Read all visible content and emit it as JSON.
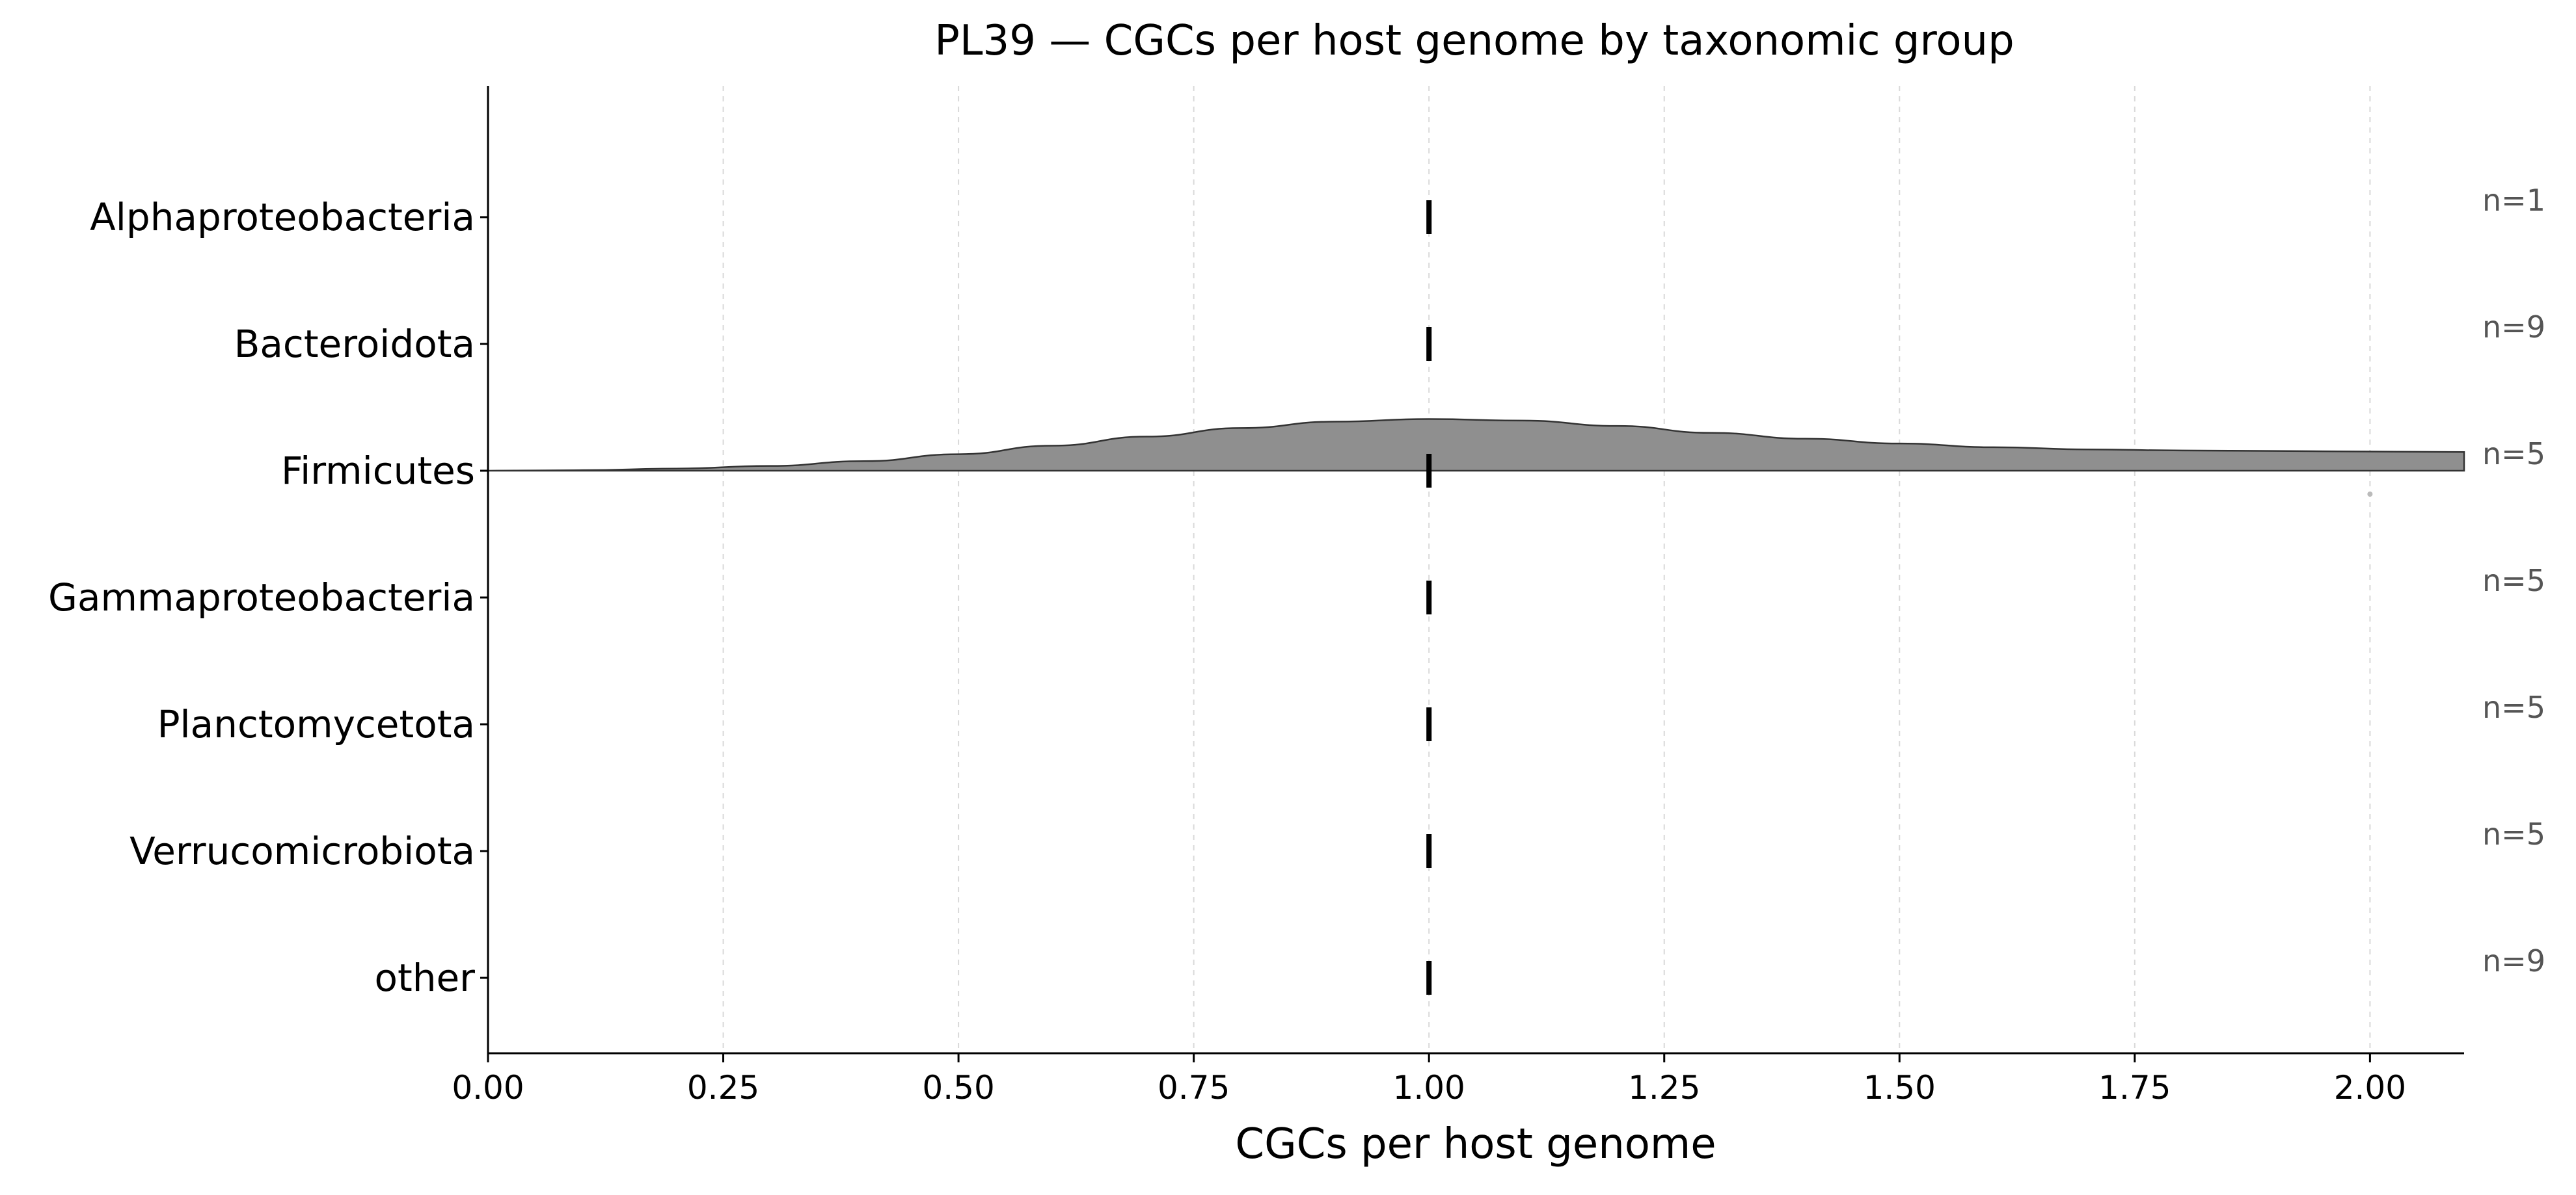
{
  "chart_data": {
    "type": "raincloud",
    "title": "PL39 — CGCs per host genome by taxonomic group",
    "xlabel": "CGCs per host genome",
    "ylabel": "",
    "xlim": [
      0.0,
      2.1
    ],
    "xticks": [
      0.0,
      0.25,
      0.5,
      0.75,
      1.0,
      1.25,
      1.5,
      1.75,
      2.0
    ],
    "xtick_labels": [
      "0.00",
      "0.25",
      "0.50",
      "0.75",
      "1.00",
      "1.25",
      "1.50",
      "1.75",
      "2.00"
    ],
    "grid": "vertical dashed",
    "categories": [
      "Alphaproteobacteria",
      "Bacteroidota",
      "Firmicutes",
      "Gammaproteobacteria",
      "Planctomycetota",
      "Verrucomicrobiota",
      "other"
    ],
    "counts": [
      "n=1",
      "n=9",
      "n=5",
      "n=5",
      "n=5",
      "n=5",
      "n=9"
    ],
    "medians": [
      1.0,
      1.0,
      1.0,
      1.0,
      1.0,
      1.0,
      1.0
    ],
    "outliers": [
      {
        "category": "Firmicutes",
        "x": 2.0
      }
    ],
    "density": {
      "category": "Firmicutes",
      "color": "#8f8f8f",
      "x": [
        0.0,
        0.1,
        0.2,
        0.3,
        0.4,
        0.5,
        0.6,
        0.7,
        0.8,
        0.9,
        1.0,
        1.1,
        1.2,
        1.3,
        1.4,
        1.5,
        1.6,
        1.7,
        1.8,
        1.9,
        2.0,
        2.1
      ],
      "y": [
        0.0,
        0.01,
        0.04,
        0.09,
        0.18,
        0.31,
        0.47,
        0.64,
        0.8,
        0.92,
        0.97,
        0.94,
        0.84,
        0.71,
        0.6,
        0.51,
        0.44,
        0.4,
        0.38,
        0.37,
        0.36,
        0.35
      ]
    },
    "colors": {
      "median": "#000000",
      "axis": "#000000",
      "grid": "#d9d9d9",
      "count_label": "#555555",
      "outlier": "#bbbbbb"
    }
  }
}
